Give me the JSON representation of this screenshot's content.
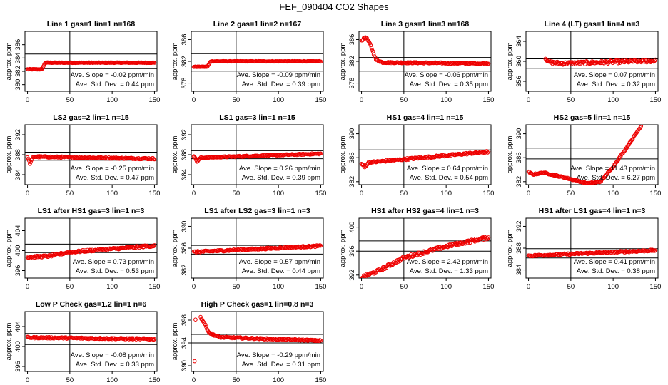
{
  "page": {
    "title": "FEF_090404  CO2 Shapes"
  },
  "chart_data": [
    {
      "type": "scatter",
      "title": "Line 1 gas=1 lin=1 n=168",
      "ylabel": "approx. ppm",
      "xlim": [
        -3,
        153
      ],
      "ylim": [
        379,
        388
      ],
      "xticks": [
        0,
        50,
        100,
        150
      ],
      "yticks": [
        380,
        382,
        384,
        386
      ],
      "ref_lines_y": [
        384.6,
        382.4
      ],
      "vline_x": 50,
      "slope_text": "Ave. Slope =  -0.02  ppm/min",
      "sd_text": "Ave. Std. Dev. =  0.44  ppm",
      "series": {
        "x_from": 0,
        "x_to": 150,
        "n": 168,
        "knots": [
          [
            0,
            382.3
          ],
          [
            17,
            382.3
          ],
          [
            21,
            383.3
          ],
          [
            150,
            383.3
          ]
        ],
        "noise": 0.05
      }
    },
    {
      "type": "scatter",
      "title": "Line 2 gas=1 lin=2 n=167",
      "ylabel": "approx. ppm",
      "xlim": [
        -3,
        153
      ],
      "ylim": [
        376.5,
        387.5
      ],
      "xticks": [
        0,
        50,
        100,
        150
      ],
      "yticks": [
        378,
        382,
        386
      ],
      "ref_lines_y": [
        383.4,
        380.2
      ],
      "vline_x": 50,
      "slope_text": "Ave. Slope =  -0.09  ppm/min",
      "sd_text": "Ave. Std. Dev. =  0.39  ppm",
      "series": {
        "x_from": 0,
        "x_to": 150,
        "n": 167,
        "knots": [
          [
            0,
            381.0
          ],
          [
            16,
            381.0
          ],
          [
            20,
            382.0
          ],
          [
            150,
            382.0
          ]
        ],
        "noise": 0.05
      }
    },
    {
      "type": "scatter",
      "title": "Line 3 gas=1 lin=3 n=168",
      "ylabel": "approx. ppm",
      "xlim": [
        -3,
        153
      ],
      "ylim": [
        376.5,
        387.5
      ],
      "xticks": [
        0,
        50,
        100,
        150
      ],
      "yticks": [
        378,
        382,
        386
      ],
      "ref_lines_y": [
        382.7,
        380.2
      ],
      "vline_x": 50,
      "slope_text": "Ave. Slope =  -0.06  ppm/min",
      "sd_text": "Ave. Std. Dev. =  0.35  ppm",
      "series": {
        "x_from": 0,
        "x_to": 150,
        "n": 168,
        "knots": [
          [
            0,
            385.8
          ],
          [
            5,
            386.5
          ],
          [
            10,
            385.2
          ],
          [
            17,
            382.3
          ],
          [
            25,
            381.8
          ],
          [
            150,
            381.6
          ]
        ],
        "noise": 0.12
      }
    },
    {
      "type": "scatter",
      "title": "Line 4 (LT) gas=1 lin=4 n=3",
      "ylabel": "approx. ppm",
      "xlim": [
        -3,
        153
      ],
      "ylim": [
        354,
        366
      ],
      "xticks": [
        0,
        50,
        100,
        150
      ],
      "yticks": [
        356,
        360,
        364
      ],
      "ref_lines_y": [
        360.5,
        358.6
      ],
      "vline_x": 50,
      "slope_text": "Ave. Slope =  0.07  ppm/min",
      "sd_text": "Ave. Std. Dev. =  0.32  ppm",
      "series": {
        "x_from": 20,
        "x_to": 150,
        "n": 140,
        "knots": [
          [
            20,
            360.6
          ],
          [
            25,
            359.8
          ],
          [
            40,
            359.6
          ],
          [
            150,
            360.1
          ]
        ],
        "noise": 0.3
      }
    },
    {
      "type": "scatter",
      "title": "LS2 gas=2 lin=1 n=15",
      "ylabel": "approx. ppm",
      "xlim": [
        -3,
        153
      ],
      "ylim": [
        382,
        394
      ],
      "xticks": [
        0,
        50,
        100,
        150
      ],
      "yticks": [
        384,
        388,
        392
      ],
      "ref_lines_y": [
        388.5,
        386.9
      ],
      "vline_x": 50,
      "slope_text": "Ave. Slope =  -0.25  ppm/min",
      "sd_text": "Ave. Std. Dev. =  0.47  ppm",
      "series": {
        "x_from": 0,
        "x_to": 150,
        "n": 160,
        "knots": [
          [
            0,
            387.6
          ],
          [
            3,
            386.2
          ],
          [
            7,
            387.6
          ],
          [
            150,
            387.2
          ]
        ],
        "noise": 0.15
      }
    },
    {
      "type": "scatter",
      "title": "LS1 gas=3 lin=1 n=15",
      "ylabel": "approx. ppm",
      "xlim": [
        -3,
        153
      ],
      "ylim": [
        382,
        394
      ],
      "xticks": [
        0,
        50,
        100,
        150
      ],
      "yticks": [
        384,
        388,
        392
      ],
      "ref_lines_y": [
        388.8,
        387.2
      ],
      "vline_x": 50,
      "slope_text": "Ave. Slope =  0.26  ppm/min",
      "sd_text": "Ave. Std. Dev. =  0.39  ppm",
      "series": {
        "x_from": 0,
        "x_to": 150,
        "n": 160,
        "knots": [
          [
            0,
            387.8
          ],
          [
            4,
            386.6
          ],
          [
            8,
            387.4
          ],
          [
            150,
            388.2
          ]
        ],
        "noise": 0.12
      }
    },
    {
      "type": "scatter",
      "title": "HS1 gas=4 lin=1 n=15",
      "ylabel": "approx. ppm",
      "xlim": [
        -3,
        153
      ],
      "ylim": [
        381.5,
        391.5
      ],
      "xticks": [
        0,
        50,
        100,
        150
      ],
      "yticks": [
        382,
        386,
        390
      ],
      "ref_lines_y": [
        387.3,
        385.6
      ],
      "vline_x": 50,
      "slope_text": "Ave. Slope =  0.64  ppm/min",
      "sd_text": "Ave. Std. Dev. =  0.54  ppm",
      "series": {
        "x_from": 0,
        "x_to": 150,
        "n": 160,
        "knots": [
          [
            0,
            385.0
          ],
          [
            4,
            384.4
          ],
          [
            8,
            385.2
          ],
          [
            150,
            387.0
          ]
        ],
        "noise": 0.15
      }
    },
    {
      "type": "scatter",
      "title": "HS2 gas=5 lin=1 n=15",
      "ylabel": "approx. ppm",
      "xlim": [
        -3,
        153
      ],
      "ylim": [
        381.5,
        391.5
      ],
      "xticks": [
        0,
        50,
        100,
        150
      ],
      "yticks": [
        382,
        386,
        390
      ],
      "ref_lines_y": [
        387.6,
        385.8
      ],
      "vline_x": 50,
      "slope_text": "Ave. Slope =  11.43  ppm/min",
      "sd_text": "Ave. Std. Dev. =  6.27  ppm",
      "series": {
        "x_from": 0,
        "x_to": 133,
        "n": 150,
        "knots": [
          [
            0,
            383.6
          ],
          [
            5,
            383.2
          ],
          [
            18,
            383.5
          ],
          [
            45,
            382.6
          ],
          [
            70,
            381.7
          ],
          [
            85,
            382.0
          ],
          [
            100,
            384.5
          ],
          [
            115,
            387.5
          ],
          [
            133,
            391.3
          ]
        ],
        "noise": 0.1
      }
    },
    {
      "type": "scatter",
      "title": "LS1 after HS1 gas=3 lin=1 n=3",
      "ylabel": "approx. ppm",
      "xlim": [
        -3,
        153
      ],
      "ylim": [
        394.5,
        406.5
      ],
      "xticks": [
        0,
        50,
        100,
        150
      ],
      "yticks": [
        396,
        400,
        404
      ],
      "ref_lines_y": [
        401.3,
        399.6
      ],
      "vline_x": 50,
      "slope_text": "Ave. Slope =  0.73  ppm/min",
      "sd_text": "Ave. Std. Dev. =  0.53  ppm",
      "series": {
        "x_from": 0,
        "x_to": 150,
        "n": 160,
        "knots": [
          [
            0,
            398.7
          ],
          [
            25,
            398.9
          ],
          [
            50,
            399.7
          ],
          [
            150,
            401.0
          ]
        ],
        "noise": 0.2
      }
    },
    {
      "type": "scatter",
      "title": "LS1 after LS2 gas=3 lin=1 n=3",
      "ylabel": "approx. ppm",
      "xlim": [
        -3,
        153
      ],
      "ylim": [
        380.5,
        391.5
      ],
      "xticks": [
        0,
        50,
        100,
        150
      ],
      "yticks": [
        382,
        386,
        390
      ],
      "ref_lines_y": [
        386.5,
        384.9
      ],
      "vline_x": 50,
      "slope_text": "Ave. Slope =  0.57  ppm/min",
      "sd_text": "Ave. Std. Dev. =  0.44  ppm",
      "series": {
        "x_from": 0,
        "x_to": 150,
        "n": 160,
        "knots": [
          [
            0,
            385.3
          ],
          [
            150,
            386.4
          ]
        ],
        "noise": 0.15
      }
    },
    {
      "type": "scatter",
      "title": "HS1 after HS2 gas=4 lin=1 n=3",
      "ylabel": "approx. ppm",
      "xlim": [
        -3,
        153
      ],
      "ylim": [
        391.5,
        401.5
      ],
      "xticks": [
        0,
        50,
        100,
        150
      ],
      "yticks": [
        392,
        396,
        400
      ],
      "ref_lines_y": [
        397.7,
        396.0
      ],
      "vline_x": 50,
      "slope_text": "Ave. Slope =  2.42  ppm/min",
      "sd_text": "Ave. Std. Dev. =  1.33  ppm",
      "series": {
        "x_from": 0,
        "x_to": 150,
        "n": 160,
        "knots": [
          [
            0,
            391.6
          ],
          [
            20,
            392.7
          ],
          [
            50,
            394.9
          ],
          [
            100,
            396.8
          ],
          [
            150,
            398.3
          ]
        ],
        "noise": 0.25
      }
    },
    {
      "type": "scatter",
      "title": "HS1 after LS1 gas=4 lin=1 n=3",
      "ylabel": "approx. ppm",
      "xlim": [
        -3,
        153
      ],
      "ylim": [
        382.5,
        393.5
      ],
      "xticks": [
        0,
        50,
        100,
        150
      ],
      "yticks": [
        384,
        388,
        392
      ],
      "ref_lines_y": [
        387.9,
        386.2
      ],
      "vline_x": 50,
      "slope_text": "Ave. Slope =  0.41  ppm/min",
      "sd_text": "Ave. Std. Dev. =  0.38  ppm",
      "series": {
        "x_from": 0,
        "x_to": 150,
        "n": 160,
        "knots": [
          [
            0,
            386.6
          ],
          [
            150,
            387.6
          ]
        ],
        "noise": 0.15
      }
    },
    {
      "type": "scatter",
      "title": "Low P Check gas=1.2 lin=1 n=6",
      "ylabel": "approx. ppm",
      "xlim": [
        -3,
        153
      ],
      "ylim": [
        395,
        407
      ],
      "xticks": [
        0,
        50,
        100,
        150
      ],
      "yticks": [
        396,
        400,
        404
      ],
      "ref_lines_y": [
        402.6,
        400.4
      ],
      "vline_x": 50,
      "slope_text": "Ave. Slope =  -0.08  ppm/min",
      "sd_text": "Ave. Std. Dev. =  0.33  ppm",
      "series": {
        "x_from": 0,
        "x_to": 150,
        "n": 160,
        "knots": [
          [
            0,
            401.8
          ],
          [
            150,
            401.5
          ]
        ],
        "noise": 0.15
      }
    },
    {
      "type": "scatter",
      "title": "High P Check gas=1 lin=0.8 n=3",
      "ylabel": "approx. ppm",
      "xlim": [
        -3,
        153
      ],
      "ylim": [
        389,
        399.5
      ],
      "xticks": [
        0,
        50,
        100,
        150
      ],
      "yticks": [
        390,
        394,
        398
      ],
      "ref_lines_y": [
        395.5,
        394.0
      ],
      "vline_x": 50,
      "slope_text": "Ave. Slope =  -0.29  ppm/min",
      "sd_text": "Ave. Std. Dev. =  0.31  ppm",
      "series": {
        "x_from": 8,
        "x_to": 150,
        "n": 150,
        "knots": [
          [
            8,
            398.5
          ],
          [
            12,
            397.6
          ],
          [
            18,
            395.8
          ],
          [
            30,
            395.0
          ],
          [
            150,
            394.4
          ]
        ],
        "noise": 0.12
      },
      "extra_points": [
        [
          2,
          398.1
        ],
        [
          1,
          390.8
        ]
      ]
    }
  ]
}
